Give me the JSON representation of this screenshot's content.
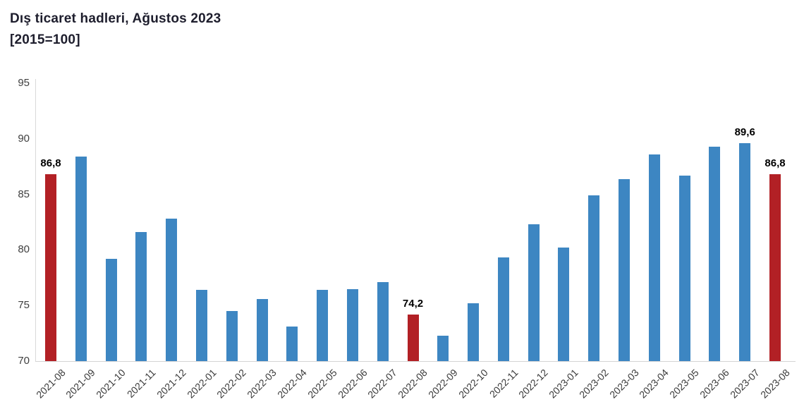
{
  "header": {
    "title": "Dış ticaret hadleri, Ağustos 2023",
    "subtitle": "[2015=100]"
  },
  "chart_data": {
    "type": "bar",
    "title": "Dış ticaret hadleri, Ağustos 2023",
    "subtitle": "[2015=100]",
    "categories": [
      "2021-08",
      "2021-09",
      "2021-10",
      "2021-11",
      "2021-12",
      "2022-01",
      "2022-02",
      "2022-03",
      "2022-04",
      "2022-05",
      "2022-06",
      "2022-07",
      "2022-08",
      "2022-09",
      "2022-10",
      "2022-11",
      "2022-12",
      "2023-01",
      "2023-02",
      "2023-03",
      "2023-04",
      "2023-05",
      "2023-06",
      "2023-07",
      "2023-08"
    ],
    "values": [
      86.8,
      88.4,
      79.2,
      81.6,
      82.8,
      76.4,
      74.5,
      75.6,
      73.1,
      76.4,
      76.5,
      77.1,
      74.2,
      72.3,
      75.2,
      79.3,
      82.3,
      80.2,
      84.9,
      86.4,
      88.6,
      86.7,
      89.3,
      89.6,
      86.8
    ],
    "xlabel": "",
    "ylabel": "",
    "ylim": [
      70,
      95
    ],
    "yticks": [
      "70",
      "75",
      "80",
      "85",
      "90",
      "95"
    ],
    "grid": false,
    "legend": false,
    "bar_color": "#3d86c2",
    "highlight_color": "#b22025",
    "highlight_indices": [
      0,
      12,
      24
    ],
    "data_labels": [
      {
        "index": 0,
        "text": "86,8"
      },
      {
        "index": 12,
        "text": "74,2"
      },
      {
        "index": 23,
        "text": "89,6"
      },
      {
        "index": 24,
        "text": "86,8"
      }
    ]
  }
}
